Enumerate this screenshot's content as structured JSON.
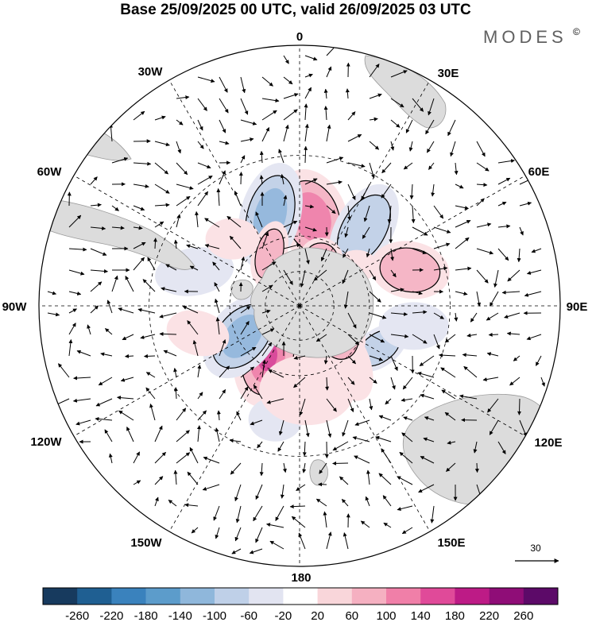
{
  "title": "Base 25/09/2025 00 UTC, valid 26/09/2025 03 UTC",
  "brand": "MODES",
  "brand_mark": "©",
  "longitude_labels": {
    "top": "0",
    "bottom": "180",
    "left": "90W",
    "right": "90E",
    "upper_left": "30W",
    "upper_right": "30E",
    "mid_left": "60W",
    "mid_right": "60E",
    "lower_left": "120W",
    "lower_right": "120E",
    "bottom_left": "150W",
    "bottom_right": "150E"
  },
  "reference_vector": {
    "label": "30"
  },
  "colorbar": {
    "labels": [
      "-260",
      "-220",
      "-180",
      "-140",
      "-100",
      "-60",
      "-20",
      "20",
      "60",
      "100",
      "140",
      "180",
      "220",
      "260"
    ],
    "colors": [
      "#173a5e",
      "#1f5f92",
      "#3a82bd",
      "#5c9ccb",
      "#8fb7db",
      "#bfd0e8",
      "#e2e4f1",
      "#ffffff",
      "#f9d6da",
      "#f5b0c1",
      "#f07fa8",
      "#e04a99",
      "#bd1b86",
      "#8f0d77",
      "#5c0a68"
    ]
  },
  "map": {
    "land_color": "#dcdcdc",
    "grid_color": "#000000",
    "anomaly_cells": [
      {
        "lon": 8,
        "colat": 38,
        "rx": 44,
        "ry": 62,
        "rot": -20,
        "level": 3,
        "type": "pos"
      },
      {
        "lon": -18,
        "colat": 40,
        "rx": 38,
        "ry": 68,
        "rot": 15,
        "level": 3,
        "type": "neg"
      },
      {
        "lon": 40,
        "colat": 42,
        "rx": 36,
        "ry": 62,
        "rot": 30,
        "level": 2,
        "type": "neg"
      },
      {
        "lon": 72,
        "colat": 48,
        "rx": 50,
        "ry": 36,
        "rot": 10,
        "level": 2,
        "type": "pos"
      },
      {
        "lon": 118,
        "colat": 38,
        "rx": 40,
        "ry": 24,
        "rot": -35,
        "level": 2,
        "type": "neg"
      },
      {
        "lon": 140,
        "colat": 30,
        "rx": 30,
        "ry": 56,
        "rot": -25,
        "level": 1,
        "type": "pos"
      },
      {
        "lon": 157,
        "colat": 18,
        "rx": 28,
        "ry": 36,
        "rot": 0,
        "level": 2,
        "type": "neg"
      },
      {
        "lon": 125,
        "colat": 20,
        "rx": 34,
        "ry": 46,
        "rot": -20,
        "level": 4,
        "type": "pos"
      },
      {
        "lon": 98,
        "colat": 18,
        "rx": 24,
        "ry": 34,
        "rot": 0,
        "level": 1,
        "type": "neg"
      },
      {
        "lon": -148,
        "colat": 26,
        "rx": 42,
        "ry": 64,
        "rot": 12,
        "level": 4,
        "type": "pos"
      },
      {
        "lon": -118,
        "colat": 28,
        "rx": 40,
        "ry": 60,
        "rot": 40,
        "level": 3,
        "type": "neg"
      },
      {
        "lon": -30,
        "colat": 26,
        "rx": 22,
        "ry": 42,
        "rot": 15,
        "level": 2,
        "type": "pos"
      },
      {
        "lon": 25,
        "colat": 22,
        "rx": 28,
        "ry": 28,
        "rot": 0,
        "level": 2,
        "type": "pos"
      },
      {
        "lon": -72,
        "colat": 46,
        "rx": 50,
        "ry": 30,
        "rot": -10,
        "level": 1,
        "type": "neg"
      },
      {
        "lon": -168,
        "colat": 48,
        "rx": 34,
        "ry": 28,
        "rot": 0,
        "level": 1,
        "type": "neg"
      },
      {
        "lon": -105,
        "colat": 44,
        "rx": 40,
        "ry": 28,
        "rot": 15,
        "level": 1,
        "type": "pos"
      },
      {
        "lon": 100,
        "colat": 48,
        "rx": 44,
        "ry": 30,
        "rot": 0,
        "level": 1,
        "type": "neg"
      },
      {
        "lon": 175,
        "colat": 36,
        "rx": 60,
        "ry": 44,
        "rot": 0,
        "level": 1,
        "type": "pos"
      },
      {
        "lon": -45,
        "colat": 40,
        "rx": 34,
        "ry": 26,
        "rot": 0,
        "level": 1,
        "type": "pos"
      },
      {
        "lon": 55,
        "colat": 30,
        "rx": 26,
        "ry": 20,
        "rot": 0,
        "level": 1,
        "type": "pos"
      }
    ]
  }
}
